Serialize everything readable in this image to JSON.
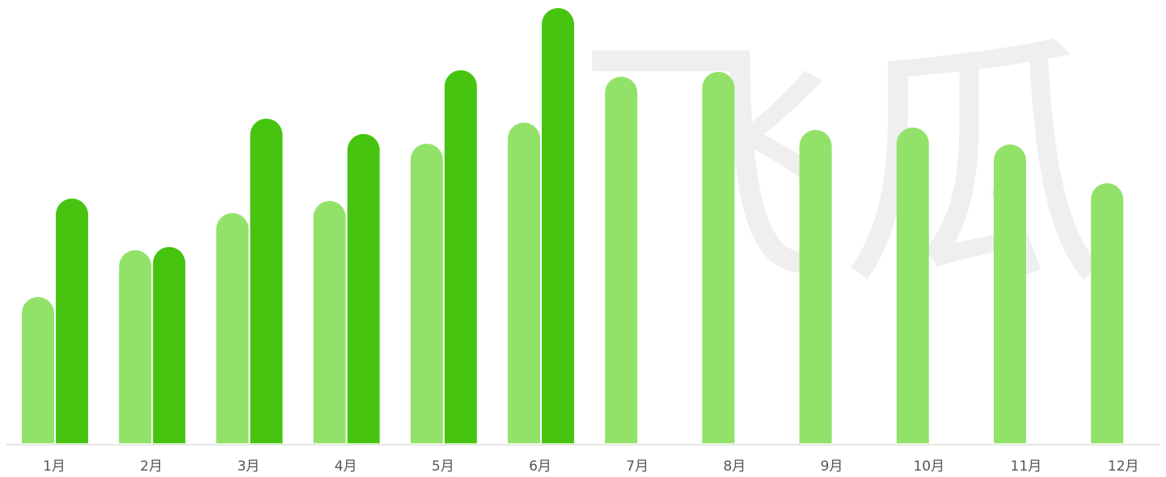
{
  "chart_data": {
    "type": "bar",
    "watermark": "飞瓜",
    "categories": [
      "1月",
      "2月",
      "3月",
      "4月",
      "5月",
      "6月",
      "7月",
      "8月",
      "9月",
      "10月",
      "11月",
      "12月"
    ],
    "series": [
      {
        "color": "#92e26a",
        "values": [
          183,
          241,
          287,
          302,
          373,
          399,
          456,
          462,
          390,
          393,
          372,
          324
        ]
      },
      {
        "color": "#46c410",
        "values": [
          305,
          245,
          404,
          385,
          464,
          541,
          null,
          null,
          null,
          null,
          null,
          null
        ]
      }
    ],
    "ylim": [
      0,
      550
    ]
  }
}
